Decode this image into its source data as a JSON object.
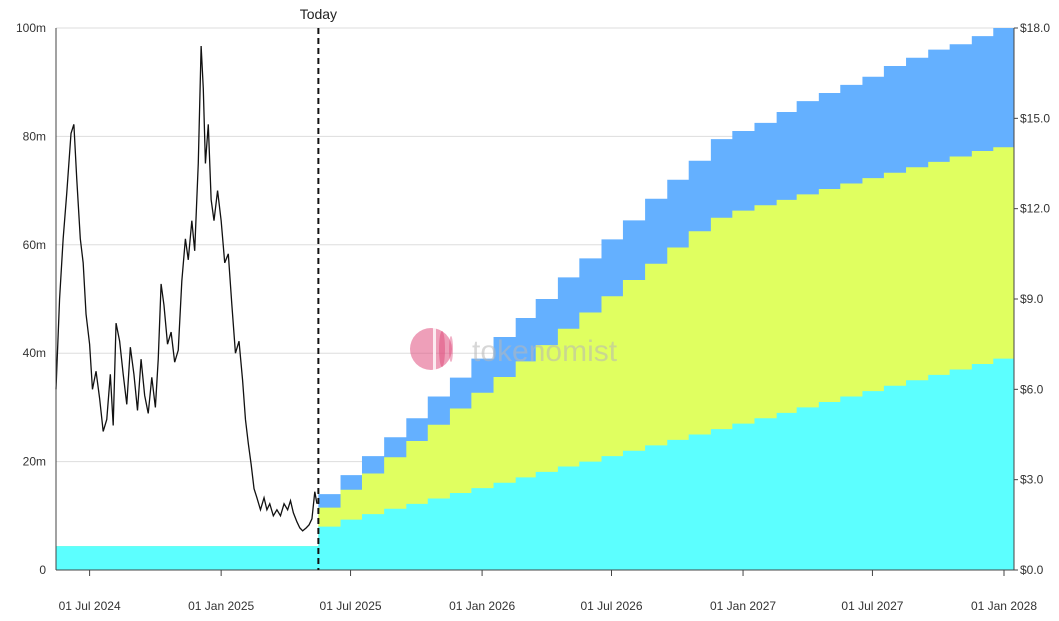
{
  "chart_data": {
    "type": "area",
    "title": "",
    "xlabel": "",
    "ylabel_left": "",
    "ylabel_right": "",
    "x_range": [
      "2024-05-15",
      "2028-01-15"
    ],
    "ylim_left": [
      0,
      100000000
    ],
    "ylim_right": [
      0,
      18
    ],
    "grid": true,
    "legend": "none",
    "watermark": "tokenomist",
    "today": {
      "label": "Today",
      "date": "2025-05-17"
    },
    "left_ticks": [
      {
        "value": 0,
        "label": "0"
      },
      {
        "value": 20000000,
        "label": "20m"
      },
      {
        "value": 40000000,
        "label": "40m"
      },
      {
        "value": 60000000,
        "label": "60m"
      },
      {
        "value": 80000000,
        "label": "80m"
      },
      {
        "value": 100000000,
        "label": "100m"
      }
    ],
    "right_ticks": [
      {
        "value": 0,
        "label": "$0.0"
      },
      {
        "value": 3,
        "label": "$3.0"
      },
      {
        "value": 6,
        "label": "$6.0"
      },
      {
        "value": 9,
        "label": "$9.0"
      },
      {
        "value": 12,
        "label": "$12.0"
      },
      {
        "value": 15,
        "label": "$15.0"
      },
      {
        "value": 18,
        "label": "$18.0"
      }
    ],
    "x_ticks": [
      {
        "date": "2024-07-01",
        "label": "01 Jul 2024"
      },
      {
        "date": "2025-01-01",
        "label": "01 Jan 2025"
      },
      {
        "date": "2025-07-01",
        "label": "01 Jul 2025"
      },
      {
        "date": "2026-01-01",
        "label": "01 Jan 2026"
      },
      {
        "date": "2026-07-01",
        "label": "01 Jul 2026"
      },
      {
        "date": "2027-01-01",
        "label": "01 Jan 2027"
      },
      {
        "date": "2027-07-01",
        "label": "01 Jul 2027"
      },
      {
        "date": "2028-01-01",
        "label": "01 Jan 2028"
      }
    ],
    "series": [
      {
        "color": "#5cffff",
        "axis": "left",
        "kind": "step-area",
        "points": [
          {
            "date": "2024-05-15",
            "value": 4400000
          },
          {
            "date": "2025-05-17",
            "value": 8000000
          },
          {
            "date": "2025-06-17",
            "value": 9300000
          },
          {
            "date": "2025-07-17",
            "value": 10300000
          },
          {
            "date": "2025-08-17",
            "value": 11300000
          },
          {
            "date": "2025-09-17",
            "value": 12200000
          },
          {
            "date": "2025-10-17",
            "value": 13200000
          },
          {
            "date": "2025-11-17",
            "value": 14200000
          },
          {
            "date": "2025-12-17",
            "value": 15100000
          },
          {
            "date": "2026-01-17",
            "value": 16100000
          },
          {
            "date": "2026-02-17",
            "value": 17100000
          },
          {
            "date": "2026-03-17",
            "value": 18100000
          },
          {
            "date": "2026-04-17",
            "value": 19100000
          },
          {
            "date": "2026-05-17",
            "value": 20000000
          },
          {
            "date": "2026-06-17",
            "value": 21000000
          },
          {
            "date": "2026-07-17",
            "value": 22000000
          },
          {
            "date": "2026-08-17",
            "value": 23000000
          },
          {
            "date": "2026-09-17",
            "value": 24000000
          },
          {
            "date": "2026-10-17",
            "value": 25000000
          },
          {
            "date": "2026-11-17",
            "value": 26000000
          },
          {
            "date": "2026-12-17",
            "value": 27000000
          },
          {
            "date": "2027-01-17",
            "value": 28000000
          },
          {
            "date": "2027-02-17",
            "value": 29000000
          },
          {
            "date": "2027-03-17",
            "value": 30000000
          },
          {
            "date": "2027-04-17",
            "value": 31000000
          },
          {
            "date": "2027-05-17",
            "value": 32000000
          },
          {
            "date": "2027-06-17",
            "value": 33000000
          },
          {
            "date": "2027-07-17",
            "value": 34000000
          },
          {
            "date": "2027-08-17",
            "value": 35000000
          },
          {
            "date": "2027-09-17",
            "value": 36000000
          },
          {
            "date": "2027-10-17",
            "value": 37000000
          },
          {
            "date": "2027-11-17",
            "value": 38000000
          },
          {
            "date": "2027-12-17",
            "value": 39000000
          },
          {
            "date": "2028-01-15",
            "value": 40000000
          }
        ]
      },
      {
        "color": "#e0ff60",
        "axis": "left",
        "kind": "step-area",
        "points": [
          {
            "date": "2024-05-15",
            "value": 4400000
          },
          {
            "date": "2025-05-17",
            "value": 11500000
          },
          {
            "date": "2025-06-17",
            "value": 14800000
          },
          {
            "date": "2025-07-17",
            "value": 17800000
          },
          {
            "date": "2025-08-17",
            "value": 20800000
          },
          {
            "date": "2025-09-17",
            "value": 23800000
          },
          {
            "date": "2025-10-17",
            "value": 26800000
          },
          {
            "date": "2025-11-17",
            "value": 29800000
          },
          {
            "date": "2025-12-17",
            "value": 32700000
          },
          {
            "date": "2026-01-17",
            "value": 35600000
          },
          {
            "date": "2026-02-17",
            "value": 38500000
          },
          {
            "date": "2026-03-17",
            "value": 41500000
          },
          {
            "date": "2026-04-17",
            "value": 44500000
          },
          {
            "date": "2026-05-17",
            "value": 47500000
          },
          {
            "date": "2026-06-17",
            "value": 50500000
          },
          {
            "date": "2026-07-17",
            "value": 53500000
          },
          {
            "date": "2026-08-17",
            "value": 56500000
          },
          {
            "date": "2026-09-17",
            "value": 59500000
          },
          {
            "date": "2026-10-17",
            "value": 62500000
          },
          {
            "date": "2026-11-17",
            "value": 65000000
          },
          {
            "date": "2026-12-17",
            "value": 66300000
          },
          {
            "date": "2027-01-17",
            "value": 67300000
          },
          {
            "date": "2027-02-17",
            "value": 68300000
          },
          {
            "date": "2027-03-17",
            "value": 69300000
          },
          {
            "date": "2027-04-17",
            "value": 70300000
          },
          {
            "date": "2027-05-17",
            "value": 71300000
          },
          {
            "date": "2027-06-17",
            "value": 72300000
          },
          {
            "date": "2027-07-17",
            "value": 73300000
          },
          {
            "date": "2027-08-17",
            "value": 74300000
          },
          {
            "date": "2027-09-17",
            "value": 75300000
          },
          {
            "date": "2027-10-17",
            "value": 76300000
          },
          {
            "date": "2027-11-17",
            "value": 77300000
          },
          {
            "date": "2027-12-17",
            "value": 78000000
          },
          {
            "date": "2028-01-15",
            "value": 78000000
          }
        ]
      },
      {
        "color": "#64b0ff",
        "axis": "left",
        "kind": "step-area",
        "points": [
          {
            "date": "2024-05-15",
            "value": 4400000
          },
          {
            "date": "2025-05-17",
            "value": 14000000
          },
          {
            "date": "2025-06-17",
            "value": 17500000
          },
          {
            "date": "2025-07-17",
            "value": 21000000
          },
          {
            "date": "2025-08-17",
            "value": 24500000
          },
          {
            "date": "2025-09-17",
            "value": 28000000
          },
          {
            "date": "2025-10-17",
            "value": 32000000
          },
          {
            "date": "2025-11-17",
            "value": 35500000
          },
          {
            "date": "2025-12-17",
            "value": 39000000
          },
          {
            "date": "2026-01-17",
            "value": 43000000
          },
          {
            "date": "2026-02-17",
            "value": 46500000
          },
          {
            "date": "2026-03-17",
            "value": 50000000
          },
          {
            "date": "2026-04-17",
            "value": 54000000
          },
          {
            "date": "2026-05-17",
            "value": 57500000
          },
          {
            "date": "2026-06-17",
            "value": 61000000
          },
          {
            "date": "2026-07-17",
            "value": 64500000
          },
          {
            "date": "2026-08-17",
            "value": 68500000
          },
          {
            "date": "2026-09-17",
            "value": 72000000
          },
          {
            "date": "2026-10-17",
            "value": 75500000
          },
          {
            "date": "2026-11-17",
            "value": 79500000
          },
          {
            "date": "2026-12-17",
            "value": 81000000
          },
          {
            "date": "2027-01-17",
            "value": 82500000
          },
          {
            "date": "2027-02-17",
            "value": 84500000
          },
          {
            "date": "2027-03-17",
            "value": 86500000
          },
          {
            "date": "2027-04-17",
            "value": 88000000
          },
          {
            "date": "2027-05-17",
            "value": 89500000
          },
          {
            "date": "2027-06-17",
            "value": 91000000
          },
          {
            "date": "2027-07-17",
            "value": 93000000
          },
          {
            "date": "2027-08-17",
            "value": 94500000
          },
          {
            "date": "2027-09-17",
            "value": 96000000
          },
          {
            "date": "2027-10-17",
            "value": 97000000
          },
          {
            "date": "2027-11-17",
            "value": 98500000
          },
          {
            "date": "2027-12-17",
            "value": 100000000
          },
          {
            "date": "2028-01-15",
            "value": 100000000
          }
        ]
      },
      {
        "color": "#111111",
        "axis": "right",
        "kind": "line",
        "points": [
          {
            "date": "2024-05-15",
            "value": 6.0
          },
          {
            "date": "2024-05-20",
            "value": 9.0
          },
          {
            "date": "2024-05-25",
            "value": 11.0
          },
          {
            "date": "2024-05-30",
            "value": 12.5
          },
          {
            "date": "2024-06-05",
            "value": 14.5
          },
          {
            "date": "2024-06-09",
            "value": 14.8
          },
          {
            "date": "2024-06-13",
            "value": 13.0
          },
          {
            "date": "2024-06-18",
            "value": 11.0
          },
          {
            "date": "2024-06-22",
            "value": 10.2
          },
          {
            "date": "2024-06-26",
            "value": 8.5
          },
          {
            "date": "2024-07-01",
            "value": 7.5
          },
          {
            "date": "2024-07-05",
            "value": 6.0
          },
          {
            "date": "2024-07-10",
            "value": 6.6
          },
          {
            "date": "2024-07-15",
            "value": 5.7
          },
          {
            "date": "2024-07-20",
            "value": 4.6
          },
          {
            "date": "2024-07-25",
            "value": 5.0
          },
          {
            "date": "2024-07-30",
            "value": 6.5
          },
          {
            "date": "2024-08-03",
            "value": 4.8
          },
          {
            "date": "2024-08-07",
            "value": 8.2
          },
          {
            "date": "2024-08-12",
            "value": 7.6
          },
          {
            "date": "2024-08-17",
            "value": 6.5
          },
          {
            "date": "2024-08-22",
            "value": 5.5
          },
          {
            "date": "2024-08-27",
            "value": 7.4
          },
          {
            "date": "2024-09-01",
            "value": 6.5
          },
          {
            "date": "2024-09-06",
            "value": 5.3
          },
          {
            "date": "2024-09-11",
            "value": 7.0
          },
          {
            "date": "2024-09-16",
            "value": 5.8
          },
          {
            "date": "2024-09-21",
            "value": 5.2
          },
          {
            "date": "2024-09-26",
            "value": 6.4
          },
          {
            "date": "2024-10-01",
            "value": 5.4
          },
          {
            "date": "2024-10-05",
            "value": 7.0
          },
          {
            "date": "2024-10-09",
            "value": 9.5
          },
          {
            "date": "2024-10-13",
            "value": 8.8
          },
          {
            "date": "2024-10-18",
            "value": 7.5
          },
          {
            "date": "2024-10-23",
            "value": 7.9
          },
          {
            "date": "2024-10-28",
            "value": 6.9
          },
          {
            "date": "2024-11-02",
            "value": 7.3
          },
          {
            "date": "2024-11-07",
            "value": 9.6
          },
          {
            "date": "2024-11-12",
            "value": 11.0
          },
          {
            "date": "2024-11-16",
            "value": 10.3
          },
          {
            "date": "2024-11-21",
            "value": 11.6
          },
          {
            "date": "2024-11-25",
            "value": 10.6
          },
          {
            "date": "2024-11-30",
            "value": 13.5
          },
          {
            "date": "2024-12-04",
            "value": 17.4
          },
          {
            "date": "2024-12-07",
            "value": 16.0
          },
          {
            "date": "2024-12-10",
            "value": 13.5
          },
          {
            "date": "2024-12-14",
            "value": 14.8
          },
          {
            "date": "2024-12-18",
            "value": 12.3
          },
          {
            "date": "2024-12-22",
            "value": 11.6
          },
          {
            "date": "2024-12-27",
            "value": 12.6
          },
          {
            "date": "2025-01-01",
            "value": 11.6
          },
          {
            "date": "2025-01-06",
            "value": 10.2
          },
          {
            "date": "2025-01-11",
            "value": 10.5
          },
          {
            "date": "2025-01-16",
            "value": 8.8
          },
          {
            "date": "2025-01-21",
            "value": 7.2
          },
          {
            "date": "2025-01-26",
            "value": 7.6
          },
          {
            "date": "2025-01-31",
            "value": 6.3
          },
          {
            "date": "2025-02-04",
            "value": 5.0
          },
          {
            "date": "2025-02-08",
            "value": 4.2
          },
          {
            "date": "2025-02-12",
            "value": 3.5
          },
          {
            "date": "2025-02-16",
            "value": 2.7
          },
          {
            "date": "2025-02-20",
            "value": 2.4
          },
          {
            "date": "2025-02-25",
            "value": 2.0
          },
          {
            "date": "2025-03-02",
            "value": 2.4
          },
          {
            "date": "2025-03-06",
            "value": 2.0
          },
          {
            "date": "2025-03-10",
            "value": 2.2
          },
          {
            "date": "2025-03-15",
            "value": 1.8
          },
          {
            "date": "2025-03-20",
            "value": 2.0
          },
          {
            "date": "2025-03-25",
            "value": 1.8
          },
          {
            "date": "2025-03-30",
            "value": 2.2
          },
          {
            "date": "2025-04-04",
            "value": 2.0
          },
          {
            "date": "2025-04-08",
            "value": 2.3
          },
          {
            "date": "2025-04-12",
            "value": 1.9
          },
          {
            "date": "2025-04-17",
            "value": 1.6
          },
          {
            "date": "2025-04-21",
            "value": 1.4
          },
          {
            "date": "2025-04-25",
            "value": 1.3
          },
          {
            "date": "2025-04-30",
            "value": 1.4
          },
          {
            "date": "2025-05-04",
            "value": 1.5
          },
          {
            "date": "2025-05-08",
            "value": 1.7
          },
          {
            "date": "2025-05-12",
            "value": 2.6
          },
          {
            "date": "2025-05-15",
            "value": 2.2
          }
        ]
      }
    ]
  }
}
